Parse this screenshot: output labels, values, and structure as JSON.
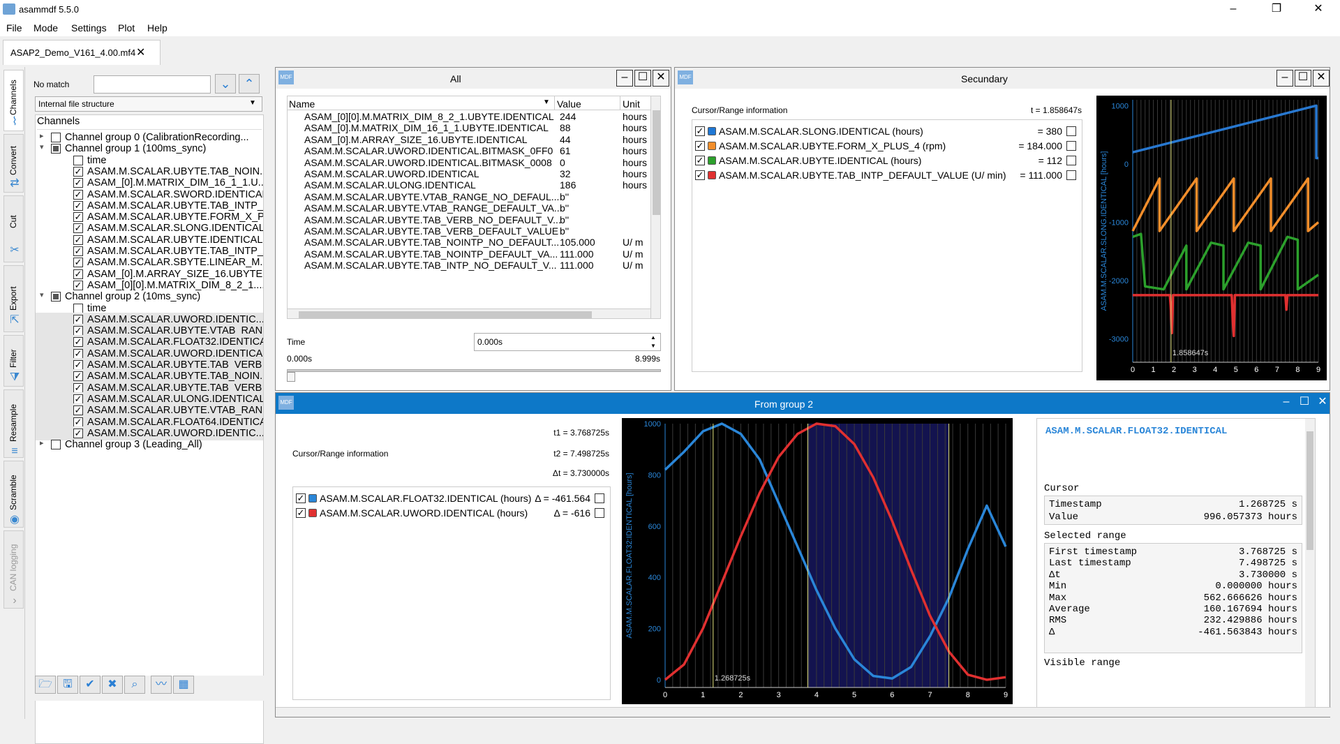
{
  "app": {
    "title": "asammdf 5.5.0",
    "menu": [
      "File",
      "Mode",
      "Settings",
      "Plot",
      "Help"
    ],
    "file_tab": "ASAP2_Demo_V161_4.00.mf4"
  },
  "side_tabs": [
    "Channels",
    "Convert",
    "Cut",
    "Export",
    "Filter",
    "Resample",
    "Scramble",
    "CAN logging"
  ],
  "left": {
    "search_status": "No match",
    "search_value": "",
    "structure_mode": "Internal file structure",
    "tree_header": "Channels",
    "tree": [
      {
        "label": "Channel group 0 (CalibrationRecording...",
        "level": 0,
        "arrow": "▸",
        "check": "none"
      },
      {
        "label": "Channel group 1 (100ms_sync)",
        "level": 0,
        "arrow": "▾",
        "check": "part"
      },
      {
        "label": "time",
        "level": 1,
        "check": "none"
      },
      {
        "label": "ASAM.M.SCALAR.UBYTE.TAB_NOIN...",
        "level": 1,
        "check": "on"
      },
      {
        "label": "ASAM_[0].M.MATRIX_DIM_16_1_1.U...",
        "level": 1,
        "check": "on"
      },
      {
        "label": "ASAM.M.SCALAR.SWORD.IDENTICAL",
        "level": 1,
        "check": "on"
      },
      {
        "label": "ASAM.M.SCALAR.UBYTE.TAB_INTP_...",
        "level": 1,
        "check": "on"
      },
      {
        "label": "ASAM.M.SCALAR.UBYTE.FORM_X_P...",
        "level": 1,
        "check": "on"
      },
      {
        "label": "ASAM.M.SCALAR.SLONG.IDENTICAL",
        "level": 1,
        "check": "on"
      },
      {
        "label": "ASAM.M.SCALAR.UBYTE.IDENTICAL",
        "level": 1,
        "check": "on"
      },
      {
        "label": "ASAM.M.SCALAR.UBYTE.TAB_INTP_...",
        "level": 1,
        "check": "on"
      },
      {
        "label": "ASAM.M.SCALAR.SBYTE.LINEAR_M...",
        "level": 1,
        "check": "on"
      },
      {
        "label": "ASAM_[0].M.ARRAY_SIZE_16.UBYTE....",
        "level": 1,
        "check": "on"
      },
      {
        "label": "ASAM_[0][0].M.MATRIX_DIM_8_2_1....",
        "level": 1,
        "check": "on"
      },
      {
        "label": "Channel group 2 (10ms_sync)",
        "level": 0,
        "arrow": "▾",
        "check": "part"
      },
      {
        "label": "time",
        "level": 1,
        "check": "none"
      },
      {
        "label": "ASAM.M.SCALAR.UWORD.IDENTIC...",
        "level": 1,
        "check": "on",
        "sel": true
      },
      {
        "label": "ASAM.M.SCALAR.UBYTE.VTAB_RAN...",
        "level": 1,
        "check": "on",
        "sel": true
      },
      {
        "label": "ASAM.M.SCALAR.FLOAT32.IDENTICAL",
        "level": 1,
        "check": "on",
        "sel": true
      },
      {
        "label": "ASAM.M.SCALAR.UWORD.IDENTICAL",
        "level": 1,
        "check": "on",
        "sel": true
      },
      {
        "label": "ASAM.M.SCALAR.UBYTE.TAB_VERB_...",
        "level": 1,
        "check": "on",
        "sel": true
      },
      {
        "label": "ASAM.M.SCALAR.UBYTE.TAB_NOIN...",
        "level": 1,
        "check": "on",
        "sel": true
      },
      {
        "label": "ASAM.M.SCALAR.UBYTE.TAB_VERB_...",
        "level": 1,
        "check": "on",
        "sel": true
      },
      {
        "label": "ASAM.M.SCALAR.ULONG.IDENTICAL",
        "level": 1,
        "check": "on",
        "sel": true
      },
      {
        "label": "ASAM.M.SCALAR.UBYTE.VTAB_RAN...",
        "level": 1,
        "check": "on",
        "sel": true
      },
      {
        "label": "ASAM.M.SCALAR.FLOAT64.IDENTICAL",
        "level": 1,
        "check": "on",
        "sel": true
      },
      {
        "label": "ASAM.M.SCALAR.UWORD.IDENTIC...",
        "level": 1,
        "check": "on",
        "sel": true
      },
      {
        "label": "Channel group 3 (Leading_All)",
        "level": 0,
        "arrow": "▸",
        "check": "none"
      }
    ],
    "toolbar_icons": [
      "open-folder-icon",
      "save-icon",
      "check-all-icon",
      "uncheck-all-icon",
      "search-icon",
      "plot-icon",
      "tabular-icon"
    ]
  },
  "all_win": {
    "title": "All",
    "mdf": "MDF",
    "cols": [
      "Name",
      "Value",
      "Unit"
    ],
    "rows": [
      [
        "ASAM_[0][0].M.MATRIX_DIM_8_2_1.UBYTE.IDENTICAL",
        "244",
        "hours"
      ],
      [
        "ASAM_[0].M.MATRIX_DIM_16_1_1.UBYTE.IDENTICAL",
        "88",
        "hours"
      ],
      [
        "ASAM_[0].M.ARRAY_SIZE_16.UBYTE.IDENTICAL",
        "44",
        "hours"
      ],
      [
        "ASAM.M.SCALAR.UWORD.IDENTICAL.BITMASK_0FF0",
        "61",
        "hours"
      ],
      [
        "ASAM.M.SCALAR.UWORD.IDENTICAL.BITMASK_0008",
        "0",
        "hours"
      ],
      [
        "ASAM.M.SCALAR.UWORD.IDENTICAL",
        "32",
        "hours"
      ],
      [
        "ASAM.M.SCALAR.ULONG.IDENTICAL",
        "186",
        "hours"
      ],
      [
        "ASAM.M.SCALAR.UBYTE.VTAB_RANGE_NO_DEFAUL...",
        "b''",
        ""
      ],
      [
        "ASAM.M.SCALAR.UBYTE.VTAB_RANGE_DEFAULT_VA...",
        "b''",
        ""
      ],
      [
        "ASAM.M.SCALAR.UBYTE.TAB_VERB_NO_DEFAULT_V...",
        "b''",
        ""
      ],
      [
        "ASAM.M.SCALAR.UBYTE.TAB_VERB_DEFAULT_VALUE",
        "b''",
        ""
      ],
      [
        "ASAM.M.SCALAR.UBYTE.TAB_NOINTP_NO_DEFAULT...",
        "105.000",
        "U/  m"
      ],
      [
        "ASAM.M.SCALAR.UBYTE.TAB_NOINTP_DEFAULT_VA...",
        "111.000",
        "U/  m"
      ],
      [
        "ASAM.M.SCALAR.UBYTE.TAB_INTP_NO_DEFAULT_V...",
        "111.000",
        "U/  m"
      ]
    ],
    "time_label": "Time",
    "time_value": "0.000s",
    "range_start": "0.000s",
    "range_end": "8.999s",
    "slider_fraction": 0
  },
  "sec_win": {
    "title": "Secundary",
    "mdf": "MDF",
    "cursor_label": "Cursor/Range information",
    "t": "t = 1.858647s",
    "channels": [
      {
        "name": "ASAM.M.SCALAR.SLONG.IDENTICAL (hours)",
        "value": "= 380",
        "color": "#1f77d4"
      },
      {
        "name": "ASAM.M.SCALAR.UBYTE.FORM_X_PLUS_4 (rpm)",
        "value": "= 184.000",
        "color": "#f28e2b"
      },
      {
        "name": "ASAM.M.SCALAR.UBYTE.IDENTICAL (hours)",
        "value": "= 112",
        "color": "#2ca02c"
      },
      {
        "name": "ASAM.M.SCALAR.UBYTE.TAB_INTP_DEFAULT_VALUE (U/  min)",
        "value": "= 111.000",
        "color": "#e03030"
      }
    ]
  },
  "from_win": {
    "title": "From group 2",
    "mdf": "MDF",
    "cursor_label": "Cursor/Range information",
    "t1": "t1 = 3.768725s",
    "t2": "t2 = 7.498725s",
    "dt": "Δt = 3.730000s",
    "channels": [
      {
        "name": "ASAM.M.SCALAR.FLOAT32.IDENTICAL (hours)",
        "value": "Δ  = -461.564",
        "color": "#2a86d8"
      },
      {
        "name": "ASAM.M.SCALAR.UWORD.IDENTICAL (hours)",
        "value": "Δ  = -616",
        "color": "#e03030"
      }
    ],
    "stats": {
      "channel": "ASAM.M.SCALAR.FLOAT32.IDENTICAL",
      "cursor_h": "Cursor",
      "timestamp_l": "Timestamp",
      "timestamp_v": "1.268725 s",
      "value_l": "Value",
      "value_v": "996.057373 hours",
      "range_h": "Selected range",
      "rows": [
        [
          "First timestamp",
          "3.768725 s"
        ],
        [
          "Last timestamp",
          "7.498725 s"
        ],
        [
          "Δt",
          "3.730000 s"
        ],
        [
          "Min",
          "0.000000 hours"
        ],
        [
          "Max",
          "562.666626 hours"
        ],
        [
          "Average",
          "160.167694 hours"
        ],
        [
          "RMS",
          "232.429886 hours"
        ],
        [
          "Δ",
          "-461.563843 hours"
        ]
      ],
      "visible_h": "Visible range"
    }
  },
  "chart_data": [
    {
      "type": "line",
      "title": "",
      "ylabel": "ASAM.M.SCALAR.SLONG.IDENTICAL [hours]",
      "xlim": [
        0,
        9
      ],
      "ylim": [
        -3400,
        1100
      ],
      "xticks": [
        0,
        1,
        2,
        3,
        4,
        5,
        6,
        7,
        8,
        9
      ],
      "yticks": [
        1000,
        0,
        -1000,
        -2000,
        -3000
      ],
      "cursor_x": 1.858647,
      "cursor_label": "1.858647s",
      "series": [
        {
          "color": "#2878d0",
          "x": [
            0,
            8.9,
            8.9,
            9
          ],
          "y": [
            200,
            1000,
            100,
            100
          ]
        },
        {
          "color": "#f28e2b",
          "x": [
            0,
            0.65,
            1.3,
            1.3,
            3.1,
            3.1,
            4.9,
            4.9,
            6.7,
            6.7,
            8.5,
            8.5,
            9
          ],
          "y": [
            -1150,
            -700,
            -250,
            -1150,
            -250,
            -1150,
            -250,
            -1150,
            -250,
            -1150,
            -250,
            -1150,
            -1000
          ]
        },
        {
          "color": "#2ca02c",
          "x": [
            0,
            0.4,
            0.6,
            1.5,
            2.6,
            2.6,
            3.8,
            4.4,
            4.4,
            5.6,
            6.2,
            6.2,
            7.5,
            8.0,
            8.0,
            9.0
          ],
          "y": [
            -1250,
            -1200,
            -2100,
            -2150,
            -1400,
            -2150,
            -1350,
            -1400,
            -2150,
            -1350,
            -1400,
            -2150,
            -1250,
            -1300,
            -2150,
            -1900
          ]
        },
        {
          "color": "#e03030",
          "x": [
            0,
            1.8,
            1.85,
            1.9,
            1.95,
            2.0,
            4.8,
            4.85,
            4.9,
            4.95,
            5.0,
            7.4,
            7.45,
            7.5,
            7.55,
            9.0
          ],
          "y": [
            -2250,
            -2250,
            -2500,
            -2900,
            -2250,
            -2250,
            -2250,
            -2700,
            -2950,
            -2250,
            -2250,
            -2250,
            -2500,
            -2250,
            -2250,
            -2250
          ]
        }
      ]
    },
    {
      "type": "line",
      "title": "",
      "ylabel": "ASAM.M.SCALAR.FLOAT32:IDENTICAL [hours]",
      "xlim": [
        0,
        9
      ],
      "ylim": [
        -30,
        1000
      ],
      "xticks": [
        0,
        1,
        2,
        3,
        4,
        5,
        6,
        7,
        8,
        9
      ],
      "yticks": [
        1000,
        800,
        600,
        400,
        200,
        0
      ],
      "cursor_x": 1.268725,
      "cursor_label": "1.268725s",
      "range": [
        3.768725,
        7.498725
      ],
      "series": [
        {
          "name": "ASAM.M.SCALAR.FLOAT32.IDENTICAL",
          "color": "#2a86d8",
          "x": [
            0,
            0.5,
            1,
            1.5,
            2,
            2.5,
            3,
            3.5,
            4,
            4.5,
            5,
            5.5,
            6,
            6.5,
            7,
            7.5,
            8,
            8.5,
            9
          ],
          "y": [
            820,
            890,
            970,
            1000,
            960,
            860,
            690,
            520,
            350,
            200,
            80,
            15,
            5,
            50,
            170,
            320,
            510,
            680,
            520
          ]
        },
        {
          "name": "ASAM.M.SCALAR.UWORD.IDENTICAL",
          "color": "#e03030",
          "x": [
            0,
            0.5,
            1,
            1.5,
            2,
            2.5,
            3,
            3.5,
            4,
            4.5,
            5,
            5.5,
            6,
            6.5,
            7,
            7.5,
            8,
            8.5,
            9
          ],
          "y": [
            0,
            60,
            200,
            380,
            560,
            730,
            870,
            960,
            1000,
            990,
            920,
            790,
            620,
            430,
            250,
            110,
            20,
            0,
            10
          ]
        }
      ]
    }
  ]
}
